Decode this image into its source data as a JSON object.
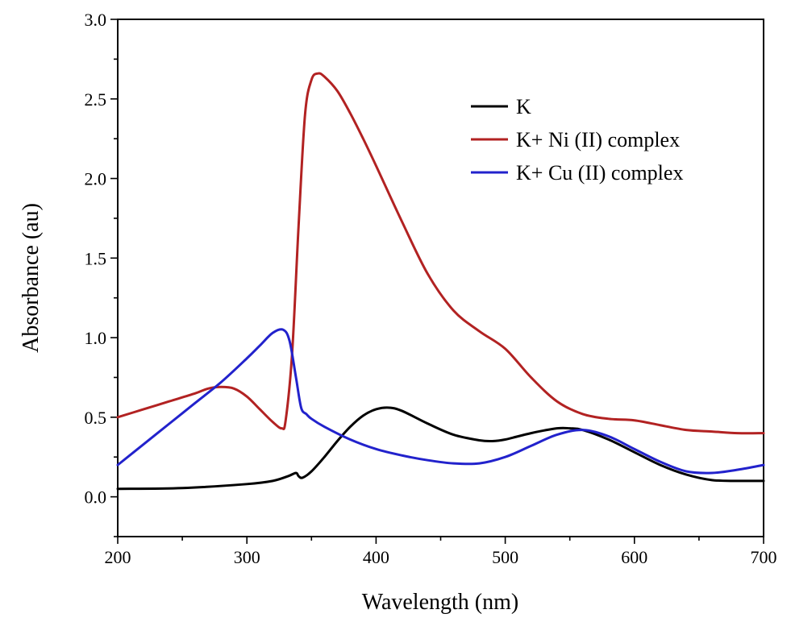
{
  "chart_data": {
    "type": "line",
    "title": "",
    "xlabel": "Wavelength (nm)",
    "ylabel": "Absorbance (au)",
    "xlim": [
      200,
      700
    ],
    "ylim": [
      -0.25,
      3.0
    ],
    "xticks": [
      200,
      300,
      400,
      500,
      600,
      700
    ],
    "xtick_labels": [
      "200",
      "300",
      "400",
      "500",
      "600",
      "700"
    ],
    "yticks": [
      0.0,
      0.5,
      1.0,
      1.5,
      2.0,
      2.5,
      3.0
    ],
    "ytick_labels": [
      "0.0",
      "0.5",
      "1.0",
      "1.5",
      "2.0",
      "2.5",
      "3.0"
    ],
    "grid": false,
    "legend_position": "top-right",
    "series": [
      {
        "name": "K",
        "color": "#000000",
        "x": [
          200,
          250,
          300,
          320,
          332,
          338,
          340,
          343,
          350,
          360,
          370,
          380,
          390,
          400,
          410,
          420,
          440,
          460,
          480,
          490,
          500,
          520,
          540,
          550,
          560,
          580,
          600,
          620,
          640,
          660,
          680,
          700
        ],
        "y": [
          0.05,
          0.055,
          0.08,
          0.1,
          0.13,
          0.15,
          0.13,
          0.12,
          0.16,
          0.25,
          0.35,
          0.44,
          0.51,
          0.55,
          0.56,
          0.54,
          0.46,
          0.39,
          0.355,
          0.35,
          0.36,
          0.4,
          0.43,
          0.43,
          0.42,
          0.36,
          0.28,
          0.2,
          0.14,
          0.105,
          0.1,
          0.1
        ]
      },
      {
        "name": "K+ Ni (II) complex",
        "color": "#b22222",
        "x": [
          200,
          220,
          240,
          260,
          270,
          280,
          290,
          300,
          310,
          320,
          327,
          330,
          335,
          340,
          345,
          350,
          355,
          360,
          370,
          380,
          390,
          400,
          420,
          440,
          460,
          480,
          500,
          520,
          540,
          560,
          580,
          600,
          620,
          640,
          660,
          680,
          700
        ],
        "y": [
          0.5,
          0.55,
          0.6,
          0.65,
          0.68,
          0.69,
          0.68,
          0.63,
          0.55,
          0.47,
          0.43,
          0.48,
          0.9,
          1.7,
          2.4,
          2.62,
          2.66,
          2.64,
          2.55,
          2.41,
          2.25,
          2.08,
          1.73,
          1.4,
          1.17,
          1.04,
          0.93,
          0.75,
          0.6,
          0.52,
          0.49,
          0.48,
          0.45,
          0.42,
          0.41,
          0.4,
          0.4
        ]
      },
      {
        "name": "K+ Cu (II) complex",
        "color": "#2222cc",
        "x": [
          200,
          220,
          240,
          260,
          280,
          300,
          310,
          320,
          328,
          333,
          338,
          342,
          346,
          350,
          360,
          380,
          400,
          420,
          440,
          460,
          480,
          500,
          520,
          540,
          560,
          580,
          600,
          620,
          640,
          660,
          680,
          700
        ],
        "y": [
          0.2,
          0.33,
          0.46,
          0.59,
          0.72,
          0.87,
          0.95,
          1.03,
          1.05,
          0.98,
          0.75,
          0.56,
          0.52,
          0.49,
          0.44,
          0.36,
          0.3,
          0.26,
          0.23,
          0.21,
          0.21,
          0.25,
          0.32,
          0.39,
          0.42,
          0.38,
          0.3,
          0.22,
          0.16,
          0.15,
          0.17,
          0.2
        ]
      }
    ]
  }
}
